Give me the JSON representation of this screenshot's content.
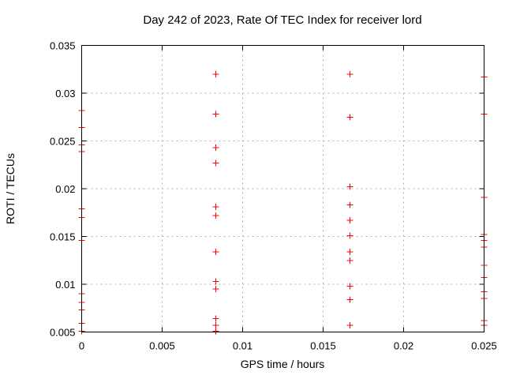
{
  "page": {
    "background": "#ffffff"
  },
  "chart_data": {
    "type": "scatter",
    "title": "Day 242 of 2023, Rate Of TEC Index for receiver lord",
    "xlabel": "GPS time / hours",
    "ylabel": "ROTI / TECUs",
    "xlim": [
      0,
      0.025
    ],
    "ylim": [
      0.005,
      0.035
    ],
    "x_ticks": [
      0,
      0.005,
      0.01,
      0.015,
      0.02,
      0.025
    ],
    "x_tick_labels": [
      "0",
      "0.005",
      "0.01",
      "0.015",
      "0.02",
      "0.025"
    ],
    "y_ticks": [
      0.005,
      0.01,
      0.015,
      0.02,
      0.025,
      0.03,
      0.035
    ],
    "y_tick_labels": [
      "0.005",
      "0.01",
      "0.015",
      "0.02",
      "0.025",
      "0.03",
      "0.035"
    ],
    "grid": true,
    "legend": "none",
    "marker": {
      "shape": "plus",
      "color": "#ff0000",
      "size": 9
    },
    "colors": {
      "marker": "#ff0000",
      "grid": "#b0b0b0",
      "axis": "#000000",
      "text": "#000000"
    },
    "groups": [
      {
        "x": 0,
        "values": [
          0.0282,
          0.0264,
          0.0246,
          0.0239,
          0.0179,
          0.017,
          0.0146,
          0.009,
          0.0081,
          0.0073,
          0.0059,
          0.0051
        ]
      },
      {
        "x": 0.008333,
        "values": [
          0.032,
          0.0278,
          0.0243,
          0.0227,
          0.0181,
          0.0172,
          0.0134,
          0.0103,
          0.0095,
          0.0064,
          0.0057,
          0.0051
        ]
      },
      {
        "x": 0.016667,
        "values": [
          0.032,
          0.0275,
          0.0202,
          0.0183,
          0.0167,
          0.0151,
          0.0134,
          0.0125,
          0.0098,
          0.0084,
          0.0057
        ]
      },
      {
        "x": 0.025,
        "values": [
          0.0317,
          0.0278,
          0.0191,
          0.0152,
          0.0146,
          0.0139,
          0.012,
          0.0107,
          0.0092,
          0.0085,
          0.0062,
          0.0057
        ]
      }
    ]
  }
}
